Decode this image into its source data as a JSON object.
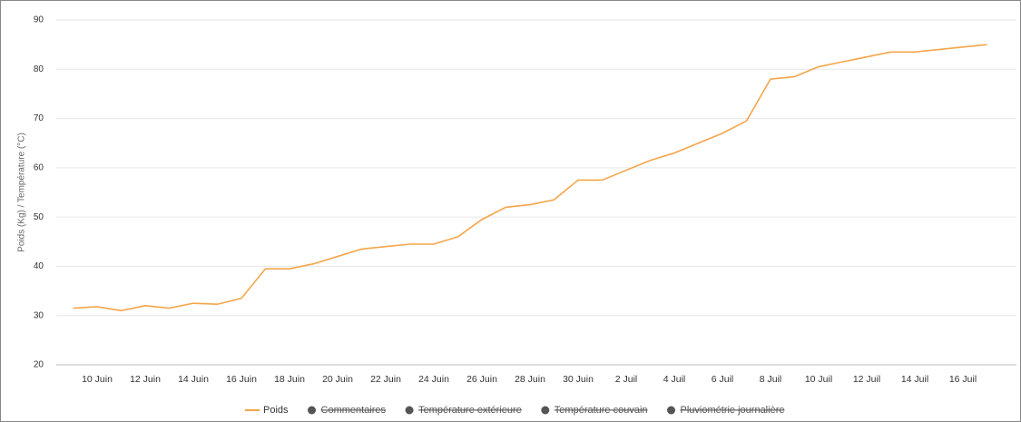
{
  "chart_data": {
    "type": "line",
    "y_label": "Poids (Kg) / Température (°C)",
    "x": [
      null,
      "10 Juin",
      null,
      "12 Juin",
      null,
      "14 Juin",
      null,
      "16 Juin",
      null,
      "18 Juin",
      null,
      "20 Juin",
      null,
      "22 Juin",
      null,
      "24 Juin",
      null,
      "26 Juin",
      null,
      "28 Juin",
      null,
      "30 Juin",
      null,
      "2 Juil",
      null,
      "4 Juil",
      null,
      "6 Juil",
      null,
      "8 Juil",
      null,
      "10 Juil",
      null,
      "12 Juil",
      null,
      "14 Juil",
      null,
      "16 Juil",
      null
    ],
    "series": [
      {
        "name": "Poids",
        "color": "#f5a54a",
        "values": [
          31.5,
          31.8,
          31,
          32,
          31.5,
          32.5,
          32.3,
          33.5,
          39.5,
          39.5,
          40.5,
          42,
          43.5,
          44,
          44.5,
          44.5,
          46,
          49.5,
          52,
          52.5,
          53.5,
          57.5,
          57.5,
          59.5,
          61.5,
          63,
          65,
          67,
          69.5,
          78,
          78.5,
          80.5,
          81.5,
          82.5,
          83.5,
          83.5,
          84,
          84.5,
          85
        ]
      }
    ],
    "hidden_series": [
      "Commentaires",
      "Température extérieure",
      "Température couvain",
      "Pluviométrie journalière"
    ],
    "ylim": [
      20,
      90
    ],
    "yticks": [
      20,
      30,
      40,
      50,
      60,
      70,
      80,
      90
    ],
    "grid": true
  }
}
